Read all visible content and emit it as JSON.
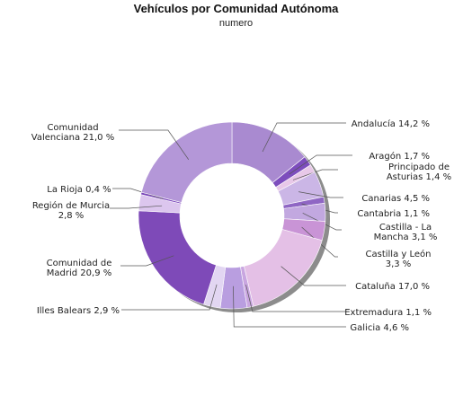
{
  "chart_data": {
    "type": "pie",
    "style": "donut",
    "title": "Vehículos por Comunidad Autónoma",
    "subtitle": "numero",
    "slices": [
      {
        "label": "Andalucía 14,2 %",
        "value": 14.2,
        "color": "#a98ad0"
      },
      {
        "label": "Aragón 1,7 %",
        "value": 1.7,
        "color": "#7d4dbd"
      },
      {
        "label": "Principado de Asturias 1,4 %",
        "value": 1.4,
        "color": "#e8c8e8"
      },
      {
        "label": "Canarias 4,5 %",
        "value": 4.5,
        "color": "#cbb6e6"
      },
      {
        "label": "Cantabria 1,1 %",
        "value": 1.1,
        "color": "#8f66c4"
      },
      {
        "label": "Castilla - La Mancha 3,1 %",
        "value": 3.1,
        "color": "#c2a8e0"
      },
      {
        "label": "Castilla y León 3,3 %",
        "value": 3.3,
        "color": "#c994d6"
      },
      {
        "label": "Cataluña 17,0 %",
        "value": 17.0,
        "color": "#e4c0e6"
      },
      {
        "label": "Extremadura 1,1 %",
        "value": 1.1,
        "color": "#c9a6e0"
      },
      {
        "label": "Galicia 4,6 %",
        "value": 4.6,
        "color": "#b99ee0"
      },
      {
        "label": "Illes Balears 2,9 %",
        "value": 2.9,
        "color": "#e2d6f2"
      },
      {
        "label": "Comunidad de Madrid 20,9 %",
        "value": 20.9,
        "color": "#7e4ab8"
      },
      {
        "label": "Región de Murcia 2,8 %",
        "value": 2.8,
        "color": "#dcc6ee"
      },
      {
        "label": "La Rioja 0,4 %",
        "value": 0.4,
        "color": "#7a45ba"
      },
      {
        "label": "Comunidad Valenciana 21,0 %",
        "value": 21.0,
        "color": "#b497d8"
      }
    ]
  }
}
